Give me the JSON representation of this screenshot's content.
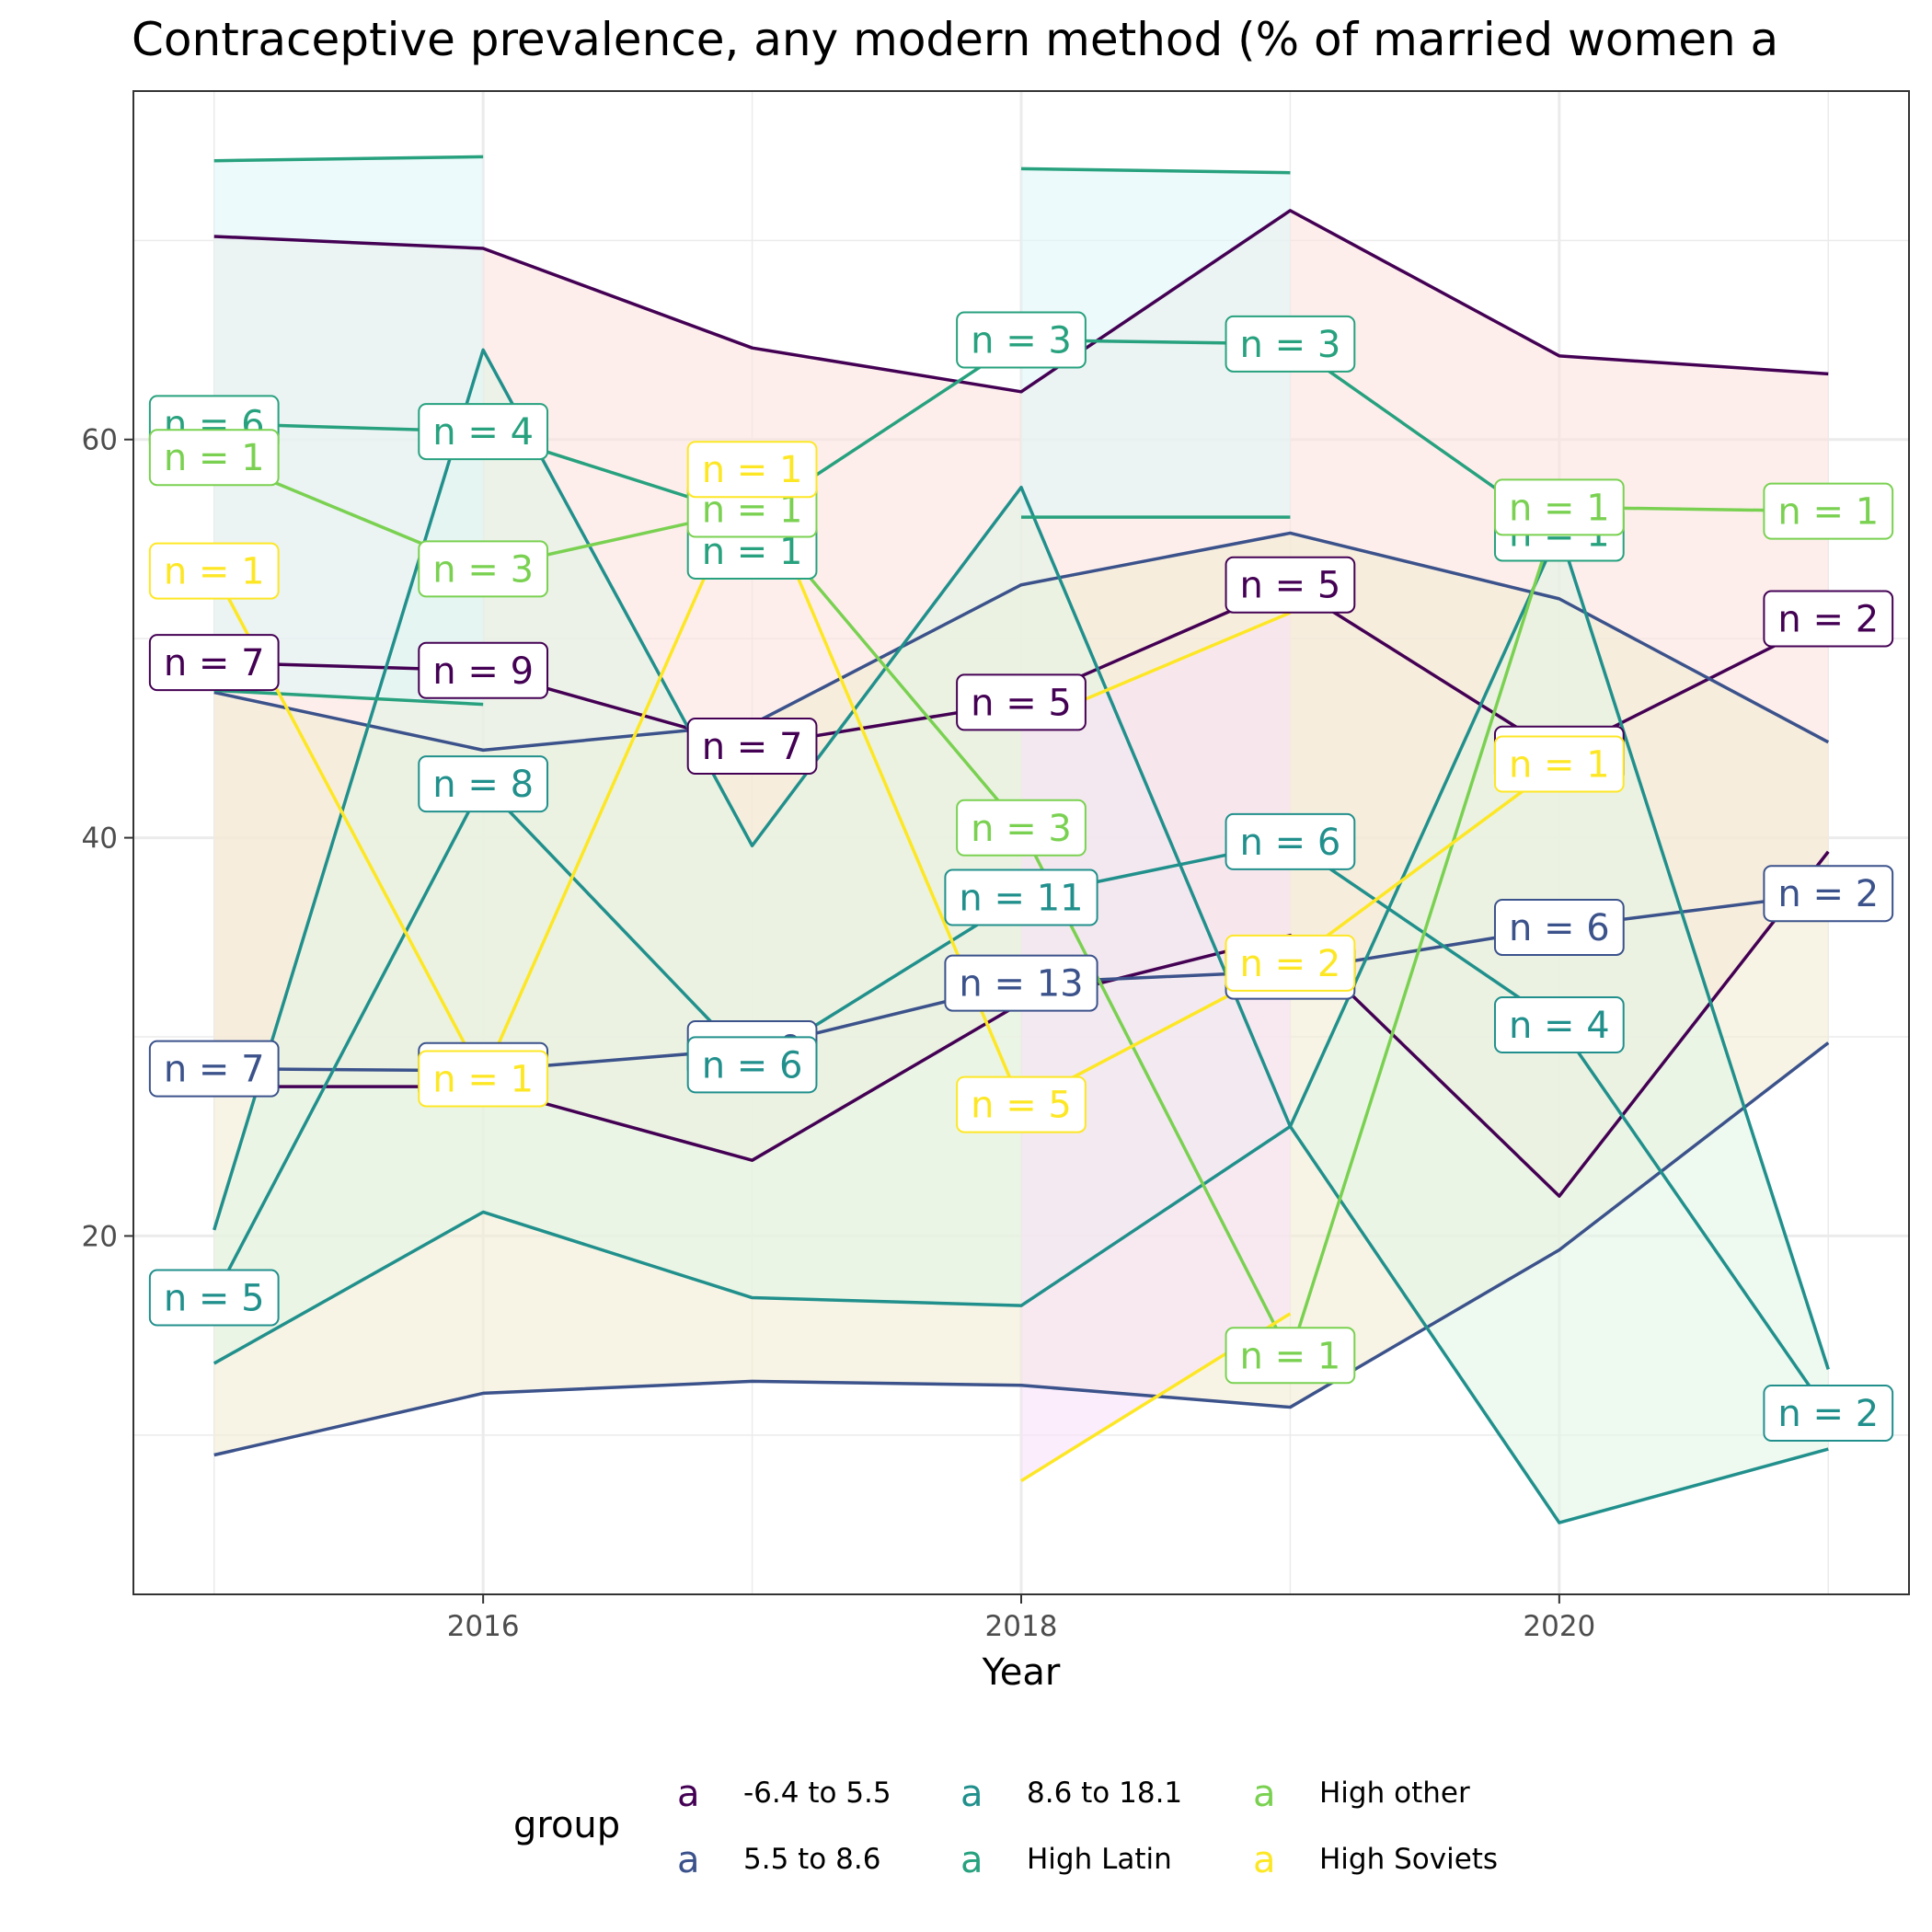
{
  "chart_data": {
    "type": "line",
    "title": "Contraceptive prevalence, any modern method (% of married women a",
    "xlabel": "Year",
    "ylabel": "",
    "xlim": [
      2014.7,
      2021.3
    ],
    "ylim": [
      2,
      77.5
    ],
    "x_ticks": [
      "2016",
      "2018",
      "2020"
    ],
    "y_ticks": [
      "20",
      "40",
      "60"
    ],
    "grid": true,
    "legend": {
      "title": "group",
      "position": "bottom",
      "key_glyph": "a",
      "entries": [
        "-6.4 to 5.5",
        "5.5 to 8.6",
        "8.6 to 18.1",
        "High Latin",
        "High other",
        "High Soviets"
      ]
    },
    "series": [
      {
        "name": "-6.4 to 5.5",
        "color": "#440154",
        "ribbon_fill": "#fbe3e0",
        "mean": [
          [
            2015,
            48.8
          ],
          [
            2016,
            48.4
          ],
          [
            2017,
            44.6
          ],
          [
            2018,
            46.8
          ],
          [
            2019,
            52.7
          ],
          [
            2020,
            44.2
          ],
          [
            2021,
            51.0
          ]
        ],
        "lower": [
          [
            2015,
            27.5
          ],
          [
            2016,
            27.5
          ],
          [
            2017,
            23.8
          ],
          [
            2018,
            31.7
          ],
          [
            2019,
            35.1
          ],
          [
            2020,
            22.0
          ],
          [
            2021,
            39.3
          ]
        ],
        "upper": [
          [
            2015,
            70.2
          ],
          [
            2016,
            69.6
          ],
          [
            2017,
            64.6
          ],
          [
            2018,
            62.4
          ],
          [
            2019,
            71.5
          ],
          [
            2020,
            64.2
          ],
          [
            2021,
            63.3
          ]
        ],
        "labels": [
          {
            "x": 2015,
            "y": 48.8,
            "text": "n = 7"
          },
          {
            "x": 2016,
            "y": 48.4,
            "text": "n = 9"
          },
          {
            "x": 2017,
            "y": 44.6,
            "text": "n = 7"
          },
          {
            "x": 2018,
            "y": 46.8,
            "text": "n = 5"
          },
          {
            "x": 2019,
            "y": 52.7,
            "text": "n = 5"
          },
          {
            "x": 2020,
            "y": 44.2,
            "text": "n = 1"
          },
          {
            "x": 2021,
            "y": 51.0,
            "text": "n = 2"
          }
        ]
      },
      {
        "name": "5.5 to 8.6",
        "color": "#3b528b",
        "ribbon_fill": "#f4ecd4",
        "mean": [
          [
            2015,
            28.4
          ],
          [
            2016,
            28.3
          ],
          [
            2017,
            29.4
          ],
          [
            2018,
            32.7
          ],
          [
            2019,
            33.3
          ],
          [
            2020,
            35.5
          ],
          [
            2021,
            37.2
          ]
        ],
        "lower": [
          [
            2015,
            9.0
          ],
          [
            2016,
            12.1
          ],
          [
            2017,
            12.7
          ],
          [
            2018,
            12.5
          ],
          [
            2019,
            11.4
          ],
          [
            2020,
            19.3
          ],
          [
            2021,
            29.7
          ]
        ],
        "upper": [
          [
            2015,
            47.3
          ],
          [
            2016,
            44.4
          ],
          [
            2017,
            45.7
          ],
          [
            2018,
            52.7
          ],
          [
            2019,
            55.3
          ],
          [
            2020,
            52.0
          ],
          [
            2021,
            44.8
          ]
        ],
        "labels": [
          {
            "x": 2015,
            "y": 28.4,
            "text": "n = 7"
          },
          {
            "x": 2016,
            "y": 28.3,
            "text": "n = 8"
          },
          {
            "x": 2017,
            "y": 29.4,
            "text": "n = 9"
          },
          {
            "x": 2018,
            "y": 32.7,
            "text": "n = 13"
          },
          {
            "x": 2019,
            "y": 33.3,
            "text": "n = 2"
          },
          {
            "x": 2020,
            "y": 35.5,
            "text": "n = 6"
          },
          {
            "x": 2021,
            "y": 37.2,
            "text": "n = 2"
          }
        ]
      },
      {
        "name": "8.6 to 18.1",
        "color": "#21908c",
        "ribbon_fill": "#e2f5e6",
        "mean": [
          [
            2015,
            16.9
          ],
          [
            2016,
            42.7
          ],
          [
            2017,
            28.6
          ],
          [
            2018,
            37.0
          ],
          [
            2019,
            39.8
          ],
          [
            2020,
            30.6
          ],
          [
            2021,
            11.1
          ]
        ],
        "lower": [
          [
            2015,
            13.6
          ],
          [
            2016,
            21.2
          ],
          [
            2017,
            16.9
          ],
          [
            2018,
            16.5
          ],
          [
            2019,
            25.5
          ],
          [
            2020,
            5.6
          ],
          [
            2021,
            9.3
          ]
        ],
        "upper": [
          [
            2015,
            20.3
          ],
          [
            2016,
            64.5
          ],
          [
            2017,
            39.6
          ],
          [
            2018,
            57.6
          ],
          [
            2019,
            25.5
          ],
          [
            2020,
            55.4
          ],
          [
            2021,
            13.3
          ]
        ],
        "labels": [
          {
            "x": 2015,
            "y": 16.9,
            "text": "n = 5"
          },
          {
            "x": 2016,
            "y": 42.7,
            "text": "n = 8"
          },
          {
            "x": 2017,
            "y": 28.6,
            "text": "n = 6"
          },
          {
            "x": 2018,
            "y": 37.0,
            "text": "n = 11"
          },
          {
            "x": 2019,
            "y": 39.8,
            "text": "n = 6"
          },
          {
            "x": 2020,
            "y": 30.6,
            "text": "n = 4"
          },
          {
            "x": 2021,
            "y": 11.1,
            "text": "n = 2"
          }
        ]
      },
      {
        "name": "High Latin",
        "color": "#27a17e",
        "ribbon_fill": "#dff6f8",
        "mean": [
          [
            2015,
            60.8
          ],
          [
            2016,
            60.4
          ],
          [
            2017,
            56.1
          ],
          [
            2018,
            65.0
          ],
          [
            2019,
            64.8
          ],
          [
            2020,
            55.3
          ]
        ],
        "lower": [
          [
            2015,
            47.4
          ],
          [
            2016,
            46.7
          ],
          null,
          [
            2018,
            56.1
          ],
          [
            2019,
            56.1
          ],
          null
        ],
        "upper": [
          [
            2015,
            74.0
          ],
          [
            2016,
            74.2
          ],
          null,
          [
            2018,
            73.6
          ],
          [
            2019,
            73.4
          ],
          null
        ],
        "labels": [
          {
            "x": 2015,
            "y": 60.8,
            "text": "n = 6"
          },
          {
            "x": 2016,
            "y": 60.4,
            "text": "n = 4"
          },
          {
            "x": 2017,
            "y": 54.4,
            "text": "n = 1"
          },
          {
            "x": 2018,
            "y": 65.0,
            "text": "n = 3"
          },
          {
            "x": 2019,
            "y": 64.8,
            "text": "n = 3"
          },
          {
            "x": 2020,
            "y": 55.3,
            "text": "n = 1"
          }
        ]
      },
      {
        "name": "High other",
        "color": "#7ad151",
        "ribbon_fill": "#f8eefc",
        "mean": [
          [
            2015,
            59.1
          ],
          [
            2016,
            53.5
          ],
          [
            2017,
            56.5
          ],
          [
            2018,
            40.5
          ],
          [
            2019,
            14.0
          ],
          [
            2020,
            56.6
          ],
          [
            2021,
            56.4
          ]
        ],
        "labels": [
          {
            "x": 2015,
            "y": 59.1,
            "text": "n = 1"
          },
          {
            "x": 2016,
            "y": 53.5,
            "text": "n = 3"
          },
          {
            "x": 2017,
            "y": 56.5,
            "text": "n = 1"
          },
          {
            "x": 2018,
            "y": 40.5,
            "text": "n = 3"
          },
          {
            "x": 2019,
            "y": 14.0,
            "text": "n = 1"
          },
          {
            "x": 2020,
            "y": 56.6,
            "text": "n = 1"
          },
          {
            "x": 2021,
            "y": 56.4,
            "text": "n = 1"
          }
        ]
      },
      {
        "name": "High Soviets",
        "color": "#fde725",
        "ribbon_fill": "#f9e1f8",
        "mean": [
          [
            2015,
            53.4
          ],
          [
            2016,
            27.9
          ],
          [
            2017,
            58.5
          ],
          [
            2018,
            26.6
          ],
          [
            2019,
            33.7
          ],
          [
            2020,
            43.7
          ]
        ],
        "lower": [
          null,
          null,
          null,
          [
            2018,
            7.7
          ],
          [
            2019,
            16.1
          ],
          null
        ],
        "upper": [
          null,
          null,
          null,
          [
            2018,
            45.6
          ],
          [
            2019,
            51.3
          ],
          null
        ],
        "labels": [
          {
            "x": 2015,
            "y": 53.4,
            "text": "n = 1"
          },
          {
            "x": 2016,
            "y": 27.9,
            "text": "n = 1"
          },
          {
            "x": 2017,
            "y": 58.5,
            "text": "n = 1"
          },
          {
            "x": 2018,
            "y": 26.6,
            "text": "n = 5"
          },
          {
            "x": 2019,
            "y": 33.7,
            "text": "n = 2"
          },
          {
            "x": 2020,
            "y": 43.7,
            "text": "n = 1"
          }
        ]
      }
    ]
  }
}
